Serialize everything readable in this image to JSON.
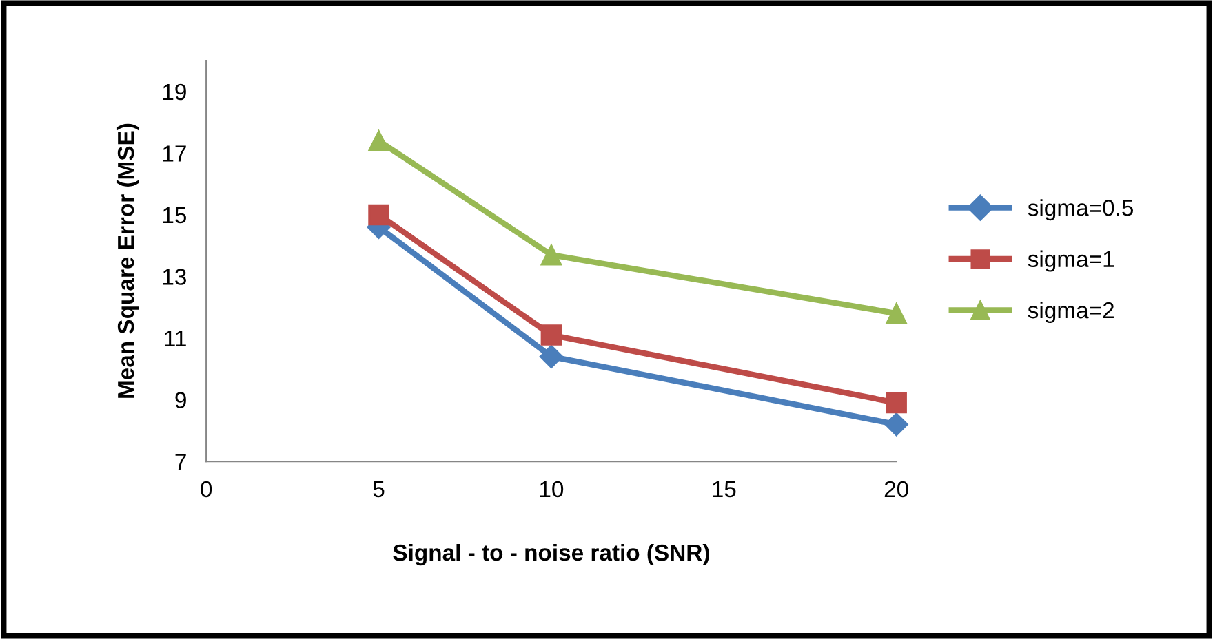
{
  "chart_data": {
    "type": "line",
    "xlabel": "Signal - to - noise ratio (SNR)",
    "ylabel": "Mean Square Error (MSE)",
    "x": [
      5,
      10,
      20
    ],
    "series": [
      {
        "name": "sigma=0.5",
        "color": "#4a7ebb",
        "marker": "diamond",
        "values": [
          14.6,
          10.4,
          8.2
        ]
      },
      {
        "name": "sigma=1",
        "color": "#be4b48",
        "marker": "square",
        "values": [
          15.0,
          11.1,
          8.9
        ]
      },
      {
        "name": "sigma=2",
        "color": "#98b954",
        "marker": "triangle",
        "values": [
          17.4,
          13.7,
          11.8
        ]
      }
    ],
    "xlim": [
      0,
      20
    ],
    "xticks": [
      0,
      5,
      10,
      15,
      20
    ],
    "ylim": [
      7,
      20
    ],
    "yticks": [
      7,
      9,
      11,
      13,
      15,
      17,
      19
    ],
    "grid": false,
    "legend": "right",
    "line_style": "solid"
  }
}
